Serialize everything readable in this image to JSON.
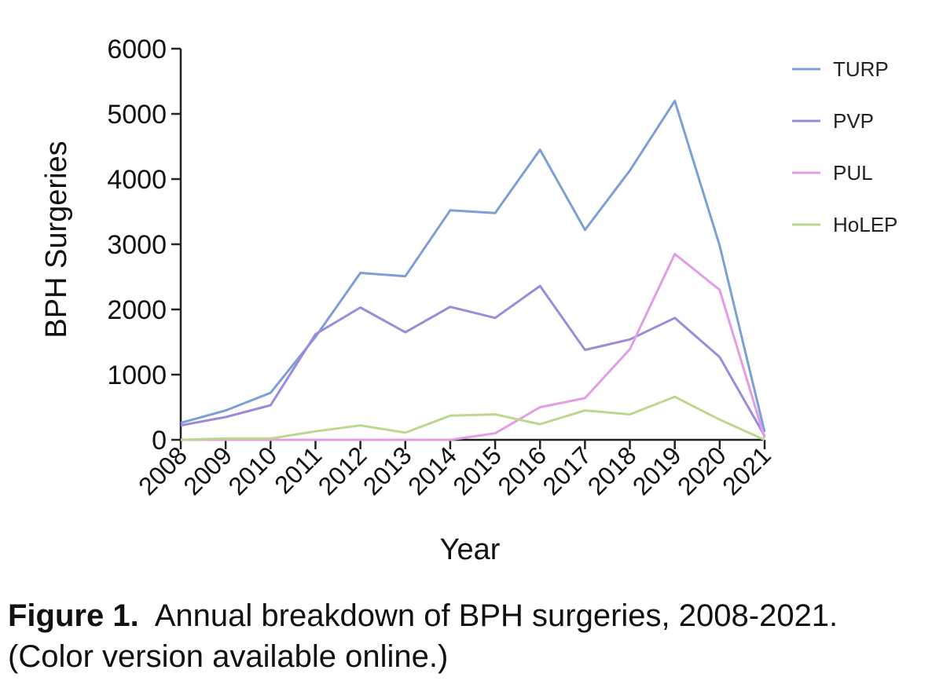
{
  "chart_data": {
    "type": "line",
    "ylabel": "BPH Surgeries",
    "xlabel": "Year",
    "ylim": [
      0,
      6000
    ],
    "yticks": [
      0,
      1000,
      2000,
      3000,
      4000,
      5000,
      6000
    ],
    "categories": [
      "2008",
      "2009",
      "2010",
      "2011",
      "2012",
      "2013",
      "2014",
      "2015",
      "2016",
      "2017",
      "2018",
      "2019",
      "2020",
      "2021"
    ],
    "legend_position": "top-right",
    "series": [
      {
        "name": "TURP",
        "color": "#7b9fd6",
        "values": [
          260,
          450,
          720,
          1580,
          2560,
          2510,
          3520,
          3480,
          4450,
          3220,
          4130,
          5200,
          2980,
          120
        ]
      },
      {
        "name": "PVP",
        "color": "#9e8ad8",
        "values": [
          220,
          350,
          530,
          1620,
          2030,
          1650,
          2040,
          1870,
          2360,
          1380,
          1540,
          1870,
          1270,
          60
        ]
      },
      {
        "name": "PUL",
        "color": "#e39ce6",
        "values": [
          0,
          0,
          0,
          0,
          0,
          0,
          0,
          100,
          500,
          640,
          1390,
          2850,
          2300,
          30
        ]
      },
      {
        "name": "HoLEP",
        "color": "#bcd88e",
        "values": [
          0,
          20,
          20,
          130,
          220,
          110,
          370,
          390,
          240,
          450,
          390,
          660,
          310,
          0
        ]
      }
    ]
  },
  "caption": {
    "label": "Figure 1.",
    "text": "Annual breakdown of BPH surgeries, 2008-2021.",
    "line2": "(Color version available online.)"
  }
}
